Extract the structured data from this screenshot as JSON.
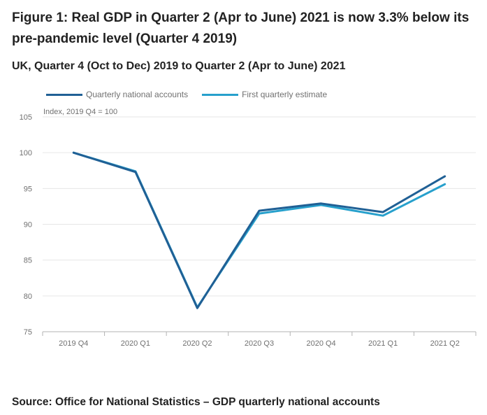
{
  "header": {
    "title": "Figure 1: Real GDP in Quarter 2 (Apr to June) 2021 is now 3.3% below its pre-pandemic level (Quarter 4 2019)",
    "subtitle": "UK, Quarter 4 (Oct to Dec) 2019 to Quarter 2 (Apr to June) 2021"
  },
  "footer": {
    "source": "Source: Office for National Statistics – GDP quarterly national accounts"
  },
  "chart_data": {
    "type": "line",
    "title": "Figure 1: Real GDP in Quarter 2 (Apr to June) 2021 is now 3.3% below its pre-pandemic level (Quarter 4 2019)",
    "subtitle": "UK, Quarter 4 (Oct to Dec) 2019 to Quarter 2 (Apr to June) 2021",
    "ylabel": "Index, 2019 Q4 = 100",
    "xlabel": "",
    "categories": [
      "2019 Q4",
      "2020 Q1",
      "2020 Q2",
      "2020 Q3",
      "2020 Q4",
      "2021 Q1",
      "2021 Q2"
    ],
    "ylim": [
      75,
      105
    ],
    "yticks": [
      "105",
      "100",
      "95",
      "90",
      "85",
      "80",
      "75"
    ],
    "grid": true,
    "legend": "top-left",
    "series": [
      {
        "name": "Quarterly national accounts",
        "color": "#206095",
        "values": [
          100,
          97.3,
          78.3,
          91.9,
          92.9,
          91.7,
          96.7
        ]
      },
      {
        "name": "First quarterly estimate",
        "color": "#27a0cc",
        "values": [
          100,
          97.4,
          78.4,
          91.5,
          92.7,
          91.2,
          95.6
        ]
      }
    ]
  }
}
